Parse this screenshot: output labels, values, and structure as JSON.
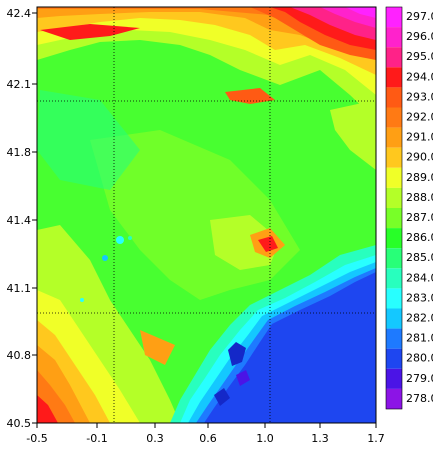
{
  "map": {
    "x_ticks": [
      "-0.5",
      "-0.1",
      "0.3",
      "0.6",
      "1.0",
      "1.3",
      "1.7"
    ],
    "y_ticks": [
      "42.4",
      "42.1",
      "41.8",
      "41.4",
      "41.1",
      "40.8",
      "40.5"
    ],
    "x_range": [
      -0.5,
      1.7
    ],
    "y_range": [
      40.5,
      42.4
    ],
    "graticule_lon": [
      -0.1,
      1.0
    ],
    "graticule_lat": [
      42.05,
      40.97
    ],
    "grid": "dotted graticule"
  },
  "colorbar": {
    "levels": [
      "297.0",
      "296.0",
      "295.0",
      "294.0",
      "293.0",
      "292.0",
      "291.0",
      "290.0",
      "289.0",
      "288.0",
      "287.0",
      "286.0",
      "285.0",
      "284.0",
      "283.0",
      "282.0",
      "281.0",
      "280.0",
      "279.0",
      "278.0"
    ],
    "colors": [
      "#ff22ff",
      "#ff22cc",
      "#ff2288",
      "#ff1a1a",
      "#ff5a14",
      "#ff7a14",
      "#ff9f14",
      "#ffc81e",
      "#f0ff28",
      "#b4ff28",
      "#78ff28",
      "#28ff28",
      "#28ff78",
      "#28ffbe",
      "#28ffff",
      "#14c8ff",
      "#1e7aff",
      "#1e46f0",
      "#4b14e6",
      "#8c14e6"
    ]
  },
  "colors": {
    "sea": "#1e46f0",
    "deep_blue": "#1428c8",
    "cyan": "#28ffff",
    "green": "#28ff28",
    "yellow": "#f0ff28",
    "orange": "#ff9f14",
    "red": "#ff1a1a",
    "magenta": "#ff22cc"
  }
}
